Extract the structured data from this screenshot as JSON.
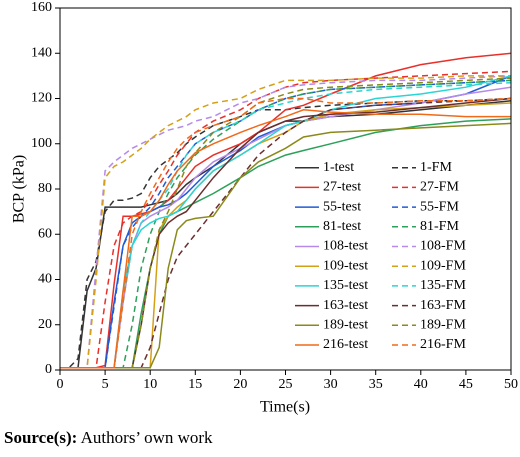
{
  "chart_data": {
    "type": "line",
    "xlabel": "Time(s)",
    "ylabel": "BCP (kPa)",
    "x": [
      0,
      1,
      2,
      3,
      4,
      5,
      6,
      7,
      8,
      9,
      10,
      11,
      12,
      13,
      14,
      15,
      17,
      20,
      22,
      25,
      27,
      30,
      35,
      40,
      45,
      50
    ],
    "xlim": [
      0,
      50
    ],
    "xticks": [
      0,
      5,
      10,
      15,
      20,
      25,
      30,
      35,
      40,
      45,
      50
    ],
    "ylim": [
      0,
      160
    ],
    "yticks": [
      0,
      20,
      40,
      60,
      80,
      100,
      120,
      140,
      160
    ],
    "legend": "lower right",
    "series": [
      {
        "name": "1-test",
        "color": "#333333",
        "style": "solid",
        "values": [
          1,
          1,
          1,
          35,
          45,
          72,
          72,
          72,
          72,
          72,
          73,
          74,
          75,
          78,
          82,
          85,
          90,
          100,
          105,
          110,
          110,
          112,
          113,
          115,
          117,
          119
        ]
      },
      {
        "name": "1-FM",
        "color": "#333333",
        "style": "dashed",
        "values": [
          1,
          1,
          5,
          40,
          48,
          70,
          75,
          75,
          76,
          78,
          85,
          90,
          93,
          96,
          100,
          103,
          108,
          112,
          115,
          115,
          116,
          117,
          118,
          119,
          119,
          120
        ]
      },
      {
        "name": "27-test",
        "color": "#e8302a",
        "style": "solid",
        "values": [
          1,
          1,
          1,
          1,
          1,
          2,
          38,
          68,
          68,
          69,
          70,
          72,
          75,
          80,
          85,
          90,
          95,
          100,
          105,
          115,
          117,
          122,
          130,
          135,
          138,
          140
        ]
      },
      {
        "name": "27-FM",
        "color": "#e8302a",
        "style": "dashed",
        "values": [
          1,
          1,
          1,
          1,
          1,
          30,
          55,
          65,
          68,
          70,
          75,
          82,
          88,
          95,
          100,
          105,
          110,
          115,
          120,
          125,
          127,
          128,
          129,
          130,
          131,
          132
        ]
      },
      {
        "name": "55-test",
        "color": "#1f5bd6",
        "style": "solid",
        "values": [
          1,
          1,
          1,
          1,
          1,
          1,
          30,
          55,
          65,
          68,
          70,
          72,
          73,
          75,
          78,
          82,
          90,
          97,
          103,
          108,
          110,
          115,
          117,
          118,
          122,
          130
        ]
      },
      {
        "name": "55-FM",
        "color": "#1f5bd6",
        "style": "dashed",
        "values": [
          1,
          1,
          1,
          1,
          1,
          1,
          28,
          55,
          63,
          68,
          72,
          78,
          85,
          90,
          95,
          100,
          105,
          110,
          115,
          120,
          122,
          124,
          125,
          126,
          127,
          128
        ]
      },
      {
        "name": "81-test",
        "color": "#2ca05a",
        "style": "solid",
        "values": [
          1,
          1,
          1,
          1,
          1,
          1,
          1,
          1,
          1,
          25,
          45,
          60,
          68,
          70,
          72,
          74,
          78,
          85,
          90,
          95,
          97,
          100,
          105,
          108,
          110,
          111
        ]
      },
      {
        "name": "81-FM",
        "color": "#2ca05a",
        "style": "dashed",
        "values": [
          1,
          1,
          1,
          1,
          1,
          1,
          1,
          1,
          20,
          45,
          60,
          70,
          78,
          85,
          90,
          95,
          102,
          110,
          115,
          120,
          122,
          124,
          125,
          126,
          127,
          128
        ]
      },
      {
        "name": "108-test",
        "color": "#b58ae8",
        "style": "solid",
        "values": [
          1,
          1,
          1,
          1,
          1,
          1,
          1,
          30,
          55,
          65,
          68,
          70,
          72,
          75,
          80,
          85,
          92,
          98,
          102,
          108,
          110,
          112,
          115,
          118,
          122,
          125
        ]
      },
      {
        "name": "108-FM",
        "color": "#b58ae8",
        "style": "dashed",
        "values": [
          1,
          1,
          1,
          1,
          45,
          88,
          92,
          95,
          98,
          100,
          102,
          104,
          106,
          107,
          108,
          110,
          112,
          118,
          120,
          125,
          126,
          127,
          128,
          128,
          129,
          130
        ]
      },
      {
        "name": "109-test",
        "color": "#d4a017",
        "style": "solid",
        "values": [
          1,
          1,
          1,
          1,
          1,
          1,
          1,
          1,
          1,
          1,
          1,
          62,
          68,
          72,
          75,
          80,
          88,
          95,
          100,
          105,
          110,
          113,
          115,
          116,
          117,
          118
        ]
      },
      {
        "name": "109-FM",
        "color": "#d4a017",
        "style": "dashed",
        "values": [
          1,
          1,
          1,
          1,
          40,
          85,
          90,
          92,
          95,
          98,
          102,
          105,
          108,
          110,
          112,
          115,
          118,
          120,
          124,
          128,
          128,
          128,
          129,
          129,
          130,
          130
        ]
      },
      {
        "name": "135-test",
        "color": "#2ad4d4",
        "style": "solid",
        "values": [
          1,
          1,
          1,
          1,
          1,
          1,
          1,
          35,
          55,
          62,
          65,
          67,
          68,
          70,
          75,
          80,
          88,
          95,
          100,
          108,
          110,
          115,
          120,
          122,
          125,
          130
        ]
      },
      {
        "name": "135-FM",
        "color": "#2ad4d4",
        "style": "dashed",
        "values": [
          1,
          1,
          1,
          1,
          1,
          1,
          1,
          30,
          55,
          65,
          70,
          75,
          80,
          88,
          95,
          100,
          105,
          110,
          115,
          118,
          120,
          122,
          124,
          125,
          126,
          127
        ]
      },
      {
        "name": "163-test",
        "color": "#6b2d2d",
        "style": "solid",
        "values": [
          1,
          1,
          1,
          1,
          1,
          1,
          1,
          1,
          1,
          20,
          45,
          60,
          65,
          68,
          70,
          75,
          85,
          98,
          105,
          110,
          112,
          113,
          114,
          116,
          118,
          120
        ]
      },
      {
        "name": "163-FM",
        "color": "#6b2d2d",
        "style": "dashed",
        "values": [
          1,
          1,
          1,
          1,
          1,
          1,
          1,
          1,
          1,
          1,
          10,
          25,
          40,
          50,
          55,
          60,
          70,
          85,
          95,
          105,
          110,
          115,
          117,
          118,
          119,
          120
        ]
      },
      {
        "name": "189-test",
        "color": "#8a8a1a",
        "style": "solid",
        "values": [
          1,
          1,
          1,
          1,
          1,
          1,
          1,
          1,
          1,
          1,
          1,
          10,
          45,
          62,
          66,
          67,
          68,
          85,
          92,
          98,
          103,
          105,
          106,
          107,
          108,
          109
        ]
      },
      {
        "name": "189-FM",
        "color": "#8a8a1a",
        "style": "dashed",
        "values": [
          1,
          1,
          1,
          1,
          1,
          1,
          1,
          1,
          1,
          20,
          45,
          62,
          70,
          80,
          90,
          96,
          105,
          112,
          118,
          122,
          124,
          125,
          126,
          127,
          128,
          129
        ]
      },
      {
        "name": "216-test",
        "color": "#f06a1a",
        "style": "solid",
        "values": [
          1,
          1,
          1,
          1,
          1,
          1,
          1,
          35,
          68,
          68,
          70,
          75,
          82,
          88,
          92,
          96,
          100,
          105,
          108,
          112,
          115,
          114,
          113,
          113,
          112,
          112
        ]
      },
      {
        "name": "216-FM",
        "color": "#f06a1a",
        "style": "dashed",
        "values": [
          1,
          1,
          1,
          1,
          1,
          1,
          1,
          30,
          60,
          70,
          78,
          85,
          92,
          98,
          102,
          105,
          108,
          112,
          118,
          120,
          120,
          118,
          118,
          119,
          119,
          120
        ]
      }
    ]
  },
  "source": {
    "label": "Source(s):",
    "text": "Authors’ own work"
  }
}
